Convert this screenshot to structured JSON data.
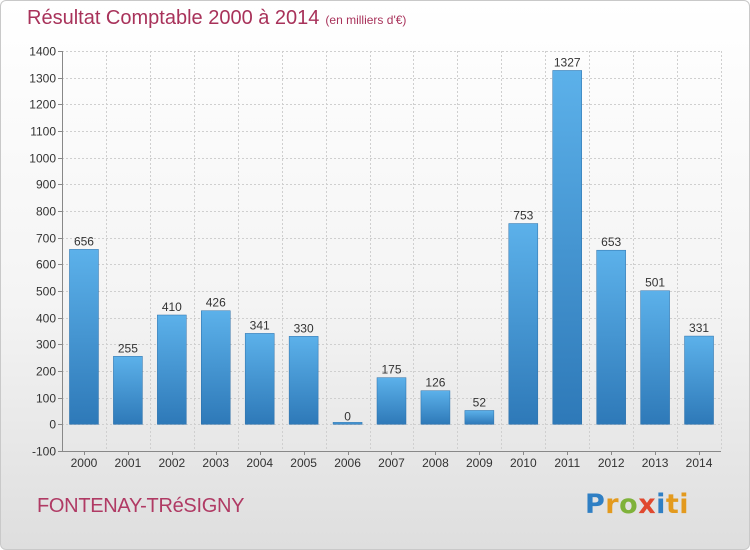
{
  "title": "Résultat Comptable 2000 à 2014",
  "subtitle": "(en milliers d'€)",
  "commune": "FONTENAY-TRéSIGNY",
  "logo": "Proxiti",
  "logo_letters": [
    "P",
    "r",
    "o",
    "x",
    "i",
    "ti"
  ],
  "colors": {
    "bar_top": "#5cb1ea",
    "bar_bottom": "#2e79b8",
    "title": "#a8325a"
  },
  "chart_data": {
    "type": "bar",
    "title": "Résultat Comptable 2000 à 2014",
    "subtitle": "(en milliers d'€)",
    "xlabel": "",
    "ylabel": "",
    "categories": [
      "2000",
      "2001",
      "2002",
      "2003",
      "2004",
      "2005",
      "2006",
      "2007",
      "2008",
      "2009",
      "2010",
      "2011",
      "2012",
      "2013",
      "2014"
    ],
    "values": [
      656,
      255,
      410,
      426,
      341,
      330,
      0,
      175,
      126,
      52,
      753,
      1327,
      653,
      501,
      331
    ],
    "ylim": [
      -100,
      1400
    ],
    "yticks": [
      -100,
      0,
      100,
      200,
      300,
      400,
      500,
      600,
      700,
      800,
      900,
      1000,
      1100,
      1200,
      1300,
      1400
    ],
    "grid": true,
    "legend": "none"
  }
}
